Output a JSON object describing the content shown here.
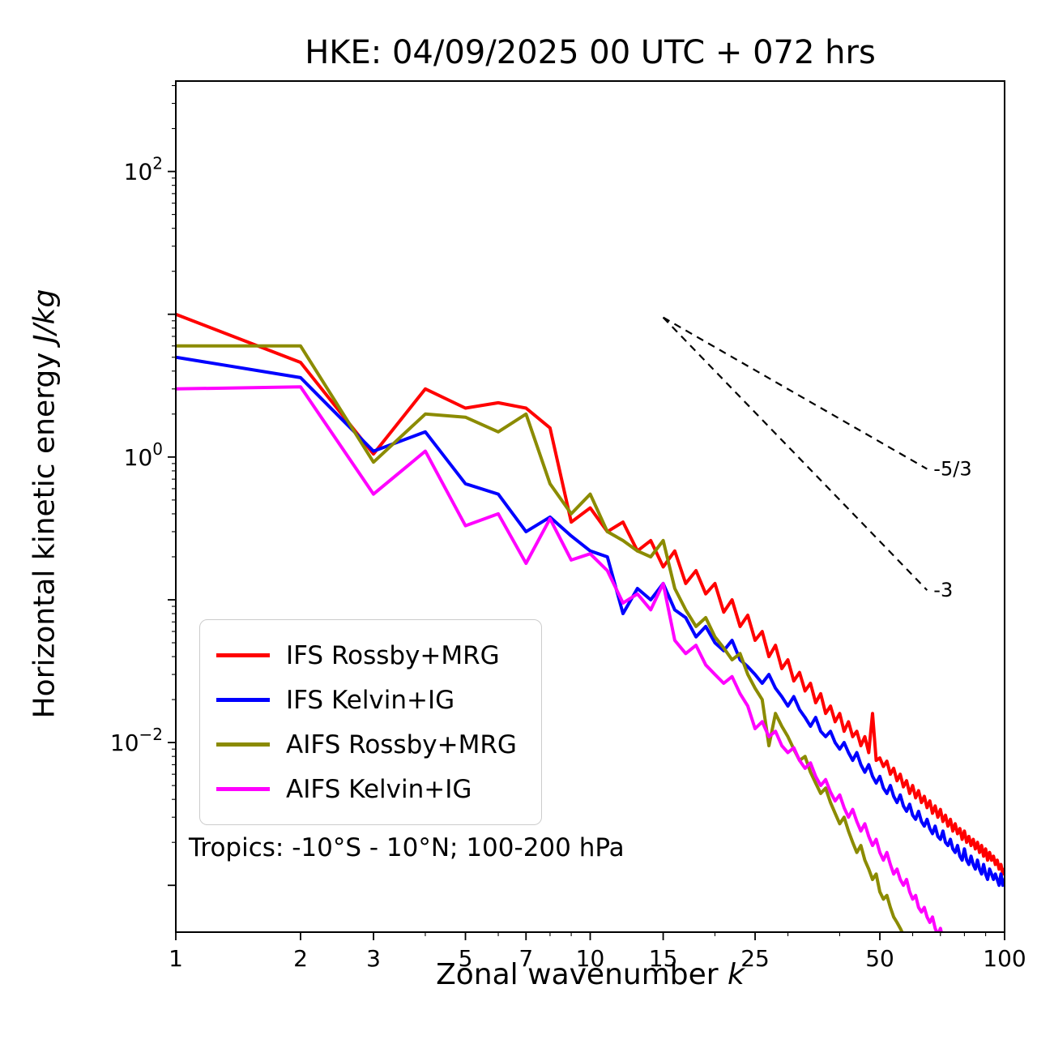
{
  "chart_data": {
    "type": "line",
    "title": "HKE: 04/09/2025 00 UTC + 072 hrs",
    "xlabel_text": "Zonal wavenumber ",
    "xlabel_italic": "k",
    "ylabel_text": "Horizontal kinetic energy ",
    "ylabel_italic": "J/kg",
    "annotation": "Tropics: -10°S - 10°N; 100-200 hPa",
    "x_scale": "log",
    "y_scale": "log",
    "xlim": [
      1,
      100
    ],
    "ylim": [
      0.00047,
      430
    ],
    "x_ticks": [
      1,
      2,
      3,
      5,
      7,
      10,
      15,
      25,
      50,
      100
    ],
    "x_minor_ticks": [
      4,
      6,
      8,
      9,
      20,
      30,
      40,
      60,
      70,
      80,
      90
    ],
    "y_labeled_exponents": [
      2,
      0,
      -2
    ],
    "y_decades": [
      -3,
      -2,
      -1,
      0,
      1,
      2
    ],
    "legend_position": "center-left",
    "grid": false,
    "reference_lines": [
      {
        "label": "-5/3",
        "slope": -1.6667,
        "start_k": 15,
        "start_v": 9.5,
        "end_k": 65,
        "color": "#000000",
        "style": "dashed"
      },
      {
        "label": "-3",
        "slope": -3.0,
        "start_k": 15,
        "start_v": 9.5,
        "end_k": 65,
        "color": "#000000",
        "style": "dashed"
      }
    ],
    "series": [
      {
        "name": "IFS Rossby+MRG",
        "color": "#ff0000",
        "k_start": 1,
        "values": [
          10.0,
          4.6,
          1.05,
          3.0,
          2.2,
          2.4,
          2.2,
          1.6,
          0.35,
          0.44,
          0.3,
          0.35,
          0.22,
          0.26,
          0.17,
          0.22,
          0.13,
          0.16,
          0.11,
          0.13,
          0.082,
          0.1,
          0.065,
          0.078,
          0.052,
          0.06,
          0.04,
          0.048,
          0.033,
          0.038,
          0.027,
          0.031,
          0.023,
          0.026,
          0.019,
          0.022,
          0.016,
          0.018,
          0.014,
          0.016,
          0.012,
          0.014,
          0.011,
          0.012,
          0.0095,
          0.011,
          0.0085,
          0.016,
          0.0075,
          0.0078,
          0.0068,
          0.0074,
          0.006,
          0.0066,
          0.0054,
          0.006,
          0.0049,
          0.0054,
          0.0044,
          0.005,
          0.0041,
          0.0046,
          0.0038,
          0.0042,
          0.0035,
          0.0039,
          0.0032,
          0.0036,
          0.003,
          0.0034,
          0.0028,
          0.0031,
          0.0026,
          0.0029,
          0.0024,
          0.0027,
          0.0023,
          0.0025,
          0.0021,
          0.0024,
          0.002,
          0.0022,
          0.0019,
          0.0021,
          0.0018,
          0.002,
          0.0017,
          0.0019,
          0.0016,
          0.0018,
          0.0015,
          0.0017,
          0.0015,
          0.0016,
          0.0014,
          0.0015,
          0.0013,
          0.0014,
          0.0012,
          0.0013
        ]
      },
      {
        "name": "IFS Kelvin+IG",
        "color": "#0000ff",
        "k_start": 1,
        "values": [
          5.0,
          3.6,
          1.1,
          1.5,
          0.65,
          0.55,
          0.3,
          0.38,
          0.28,
          0.22,
          0.2,
          0.08,
          0.12,
          0.1,
          0.13,
          0.085,
          0.075,
          0.055,
          0.065,
          0.05,
          0.044,
          0.052,
          0.038,
          0.034,
          0.03,
          0.026,
          0.03,
          0.024,
          0.021,
          0.018,
          0.021,
          0.017,
          0.015,
          0.013,
          0.015,
          0.012,
          0.011,
          0.012,
          0.01,
          0.009,
          0.01,
          0.0085,
          0.0075,
          0.0085,
          0.007,
          0.0062,
          0.007,
          0.0058,
          0.0052,
          0.0058,
          0.0048,
          0.0044,
          0.005,
          0.0042,
          0.0038,
          0.0043,
          0.0036,
          0.0033,
          0.0037,
          0.0031,
          0.0029,
          0.0033,
          0.0028,
          0.0026,
          0.0029,
          0.0025,
          0.0023,
          0.0026,
          0.0022,
          0.0021,
          0.0024,
          0.002,
          0.0019,
          0.0021,
          0.0018,
          0.0017,
          0.0019,
          0.0016,
          0.0015,
          0.0018,
          0.0015,
          0.0014,
          0.0016,
          0.0014,
          0.0013,
          0.0015,
          0.0013,
          0.0012,
          0.0014,
          0.0012,
          0.0011,
          0.0013,
          0.0012,
          0.0011,
          0.0012,
          0.0011,
          0.001,
          0.0012,
          0.001,
          0.0011
        ]
      },
      {
        "name": "AIFS Rossby+MRG",
        "color": "#8b8b00",
        "k_start": 1,
        "values": [
          6.0,
          6.0,
          0.92,
          2.0,
          1.9,
          1.5,
          2.0,
          0.65,
          0.4,
          0.55,
          0.3,
          0.26,
          0.22,
          0.2,
          0.26,
          0.12,
          0.085,
          0.065,
          0.075,
          0.055,
          0.046,
          0.038,
          0.042,
          0.03,
          0.024,
          0.02,
          0.0095,
          0.016,
          0.013,
          0.011,
          0.009,
          0.0075,
          0.008,
          0.0062,
          0.0052,
          0.0044,
          0.0048,
          0.0038,
          0.0032,
          0.0027,
          0.003,
          0.0024,
          0.002,
          0.0017,
          0.0019,
          0.0015,
          0.0013,
          0.0011,
          0.0012,
          0.0009,
          0.0008,
          0.00085,
          0.0007,
          0.0006,
          0.00055,
          0.0005,
          0.00045,
          0.00042,
          0.00038,
          0.00035,
          0.00032,
          0.0003
        ]
      },
      {
        "name": "AIFS Kelvin+IG",
        "color": "#ff00ff",
        "k_start": 1,
        "values": [
          3.0,
          3.1,
          0.55,
          1.1,
          0.33,
          0.4,
          0.18,
          0.37,
          0.19,
          0.21,
          0.16,
          0.095,
          0.11,
          0.085,
          0.13,
          0.052,
          0.042,
          0.048,
          0.035,
          0.03,
          0.026,
          0.029,
          0.022,
          0.018,
          0.0125,
          0.014,
          0.011,
          0.012,
          0.0095,
          0.0085,
          0.0092,
          0.0075,
          0.0066,
          0.0072,
          0.0058,
          0.005,
          0.0055,
          0.0045,
          0.0039,
          0.0043,
          0.0035,
          0.003,
          0.0034,
          0.0028,
          0.0024,
          0.0027,
          0.0022,
          0.0019,
          0.0021,
          0.0017,
          0.0015,
          0.0017,
          0.0014,
          0.0012,
          0.0013,
          0.0011,
          0.001,
          0.0011,
          0.0009,
          0.0008,
          0.00085,
          0.0007,
          0.00065,
          0.0007,
          0.0006,
          0.00055,
          0.0006,
          0.0005,
          0.00045,
          0.0005,
          0.00042,
          0.0004
        ]
      }
    ]
  }
}
